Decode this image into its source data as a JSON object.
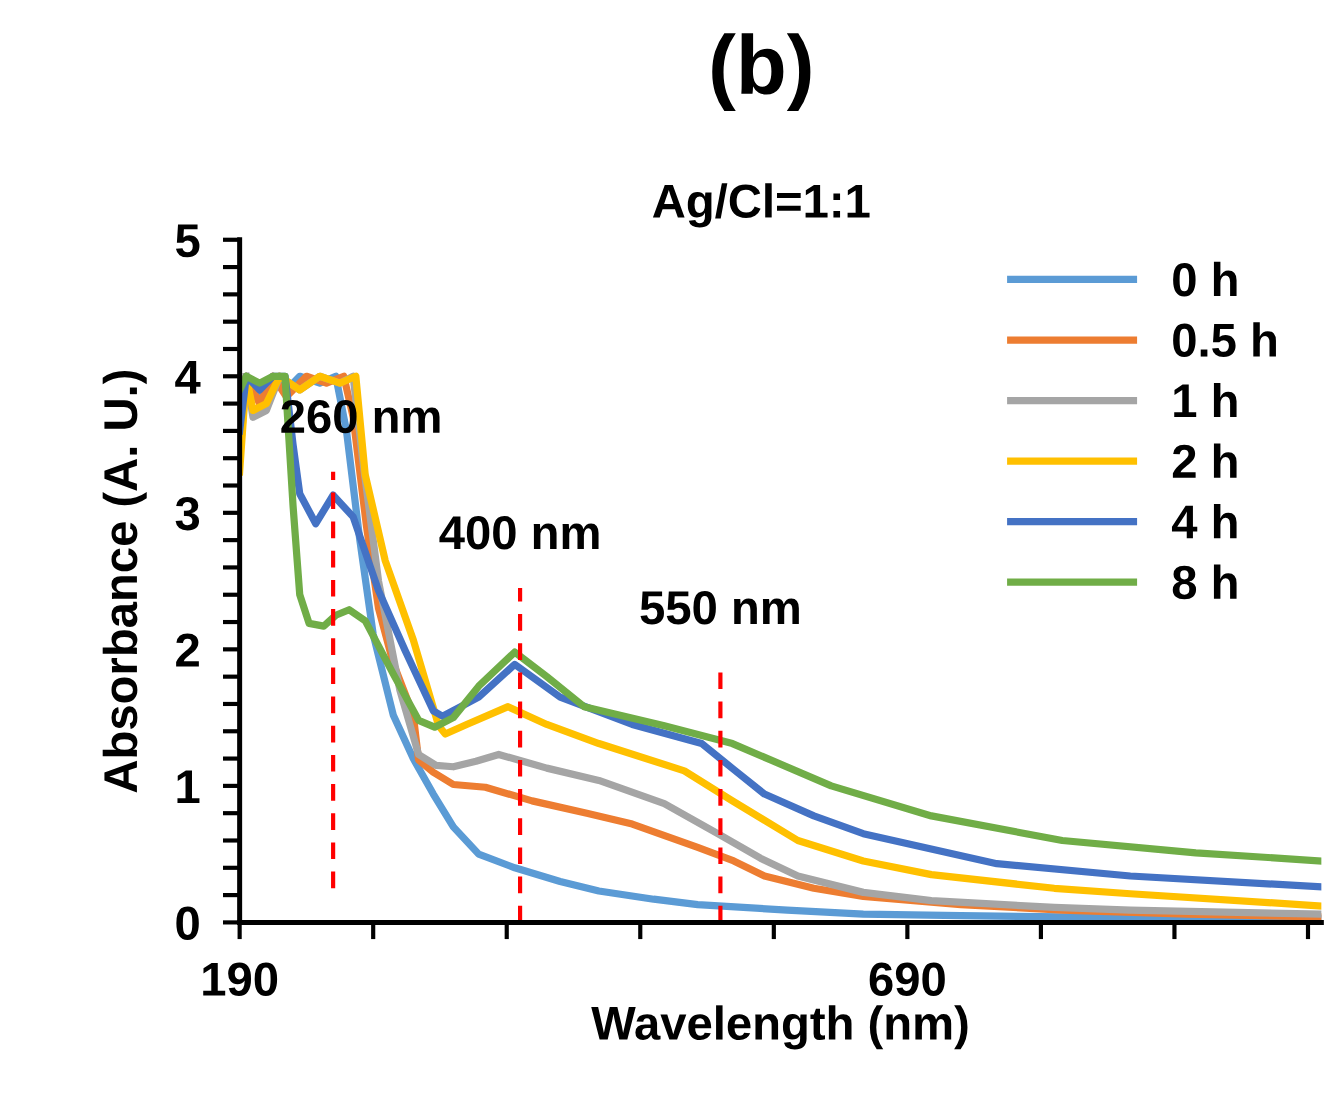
{
  "chart_data": {
    "type": "line",
    "title": "(b)",
    "subtitle": "Ag/Cl=1:1",
    "xlabel": "Wavelength (nm)",
    "ylabel": "Absorbance (A. U.)",
    "xlim": [
      190,
      1000
    ],
    "ylim": [
      0,
      5
    ],
    "xticks": [
      190,
      {
        "value": 290,
        "label": null
      },
      {
        "value": 390,
        "label": null
      },
      {
        "value": 490,
        "label": null
      },
      {
        "value": 590,
        "label": null
      },
      690,
      {
        "value": 790,
        "label": null
      },
      {
        "value": 890,
        "label": null
      },
      {
        "value": 990,
        "label": null
      }
    ],
    "yticks": [
      0,
      {
        "value": 0.2,
        "label": null
      },
      {
        "value": 0.4,
        "label": null
      },
      {
        "value": 0.6,
        "label": null
      },
      {
        "value": 0.8,
        "label": null
      },
      1,
      {
        "value": 1.2,
        "label": null
      },
      {
        "value": 1.4,
        "label": null
      },
      {
        "value": 1.6,
        "label": null
      },
      {
        "value": 1.8,
        "label": null
      },
      2,
      {
        "value": 2.2,
        "label": null
      },
      {
        "value": 2.4,
        "label": null
      },
      {
        "value": 2.6,
        "label": null
      },
      {
        "value": 2.8,
        "label": null
      },
      3,
      {
        "value": 3.2,
        "label": null
      },
      {
        "value": 3.4,
        "label": null
      },
      {
        "value": 3.6,
        "label": null
      },
      {
        "value": 3.8,
        "label": null
      },
      4,
      {
        "value": 4.2,
        "label": null
      },
      {
        "value": 4.4,
        "label": null
      },
      {
        "value": 4.6,
        "label": null
      },
      {
        "value": 4.8,
        "label": null
      },
      5
    ],
    "grid": false,
    "legend": "top right",
    "marker": "none",
    "line_style": "solid",
    "series": [
      {
        "name": "0 h",
        "color": "#5b9bd5",
        "x": [
          190,
          195,
          205,
          215,
          225,
          235,
          250,
          262,
          270,
          280,
          290,
          305,
          320,
          335,
          350,
          369,
          396,
          430,
          459,
          500,
          533,
          600,
          657,
          730,
          806,
          900,
          1000
        ],
        "values": [
          3.5,
          4.0,
          3.85,
          4.0,
          3.9,
          4.0,
          3.95,
          4.0,
          3.6,
          2.8,
          2.11,
          1.52,
          1.2,
          0.94,
          0.7,
          0.5,
          0.4,
          0.3,
          0.23,
          0.17,
          0.13,
          0.09,
          0.06,
          0.05,
          0.04,
          0.03,
          0.03
        ]
      },
      {
        "name": "0.5 h",
        "color": "#ed7d31",
        "x": [
          190,
          195,
          205,
          215,
          225,
          240,
          255,
          268,
          275,
          285,
          294,
          305,
          320,
          324,
          335,
          350,
          374,
          409,
          450,
          484,
          533,
          560,
          583,
          620,
          657,
          730,
          806,
          900,
          1000
        ],
        "values": [
          3.4,
          4.0,
          3.8,
          4.0,
          3.85,
          4.0,
          3.95,
          4.0,
          3.7,
          2.9,
          2.3,
          1.9,
          1.52,
          1.19,
          1.1,
          1.01,
          0.99,
          0.89,
          0.8,
          0.72,
          0.55,
          0.45,
          0.34,
          0.25,
          0.19,
          0.13,
          0.09,
          0.06,
          0.04
        ]
      },
      {
        "name": "1 h",
        "color": "#a5a5a5",
        "x": [
          195,
          200,
          210,
          220,
          235,
          250,
          265,
          275,
          282,
          294,
          310,
          324,
          337,
          350,
          367,
          384,
          420,
          459,
          508,
          548,
          580,
          608,
          657,
          708,
          800,
          857,
          1000
        ],
        "values": [
          4.0,
          3.7,
          3.75,
          4.0,
          3.9,
          4.0,
          3.95,
          4.0,
          3.4,
          2.5,
          1.7,
          1.23,
          1.15,
          1.14,
          1.18,
          1.23,
          1.13,
          1.04,
          0.87,
          0.65,
          0.47,
          0.34,
          0.22,
          0.16,
          0.11,
          0.09,
          0.06
        ]
      },
      {
        "name": "2 h",
        "color": "#ffc000",
        "x": [
          190,
          195,
          200,
          210,
          220,
          235,
          250,
          265,
          277,
          284,
          299,
          320,
          339,
          344,
          360,
          391,
          420,
          459,
          523,
          559,
          608,
          657,
          708,
          800,
          857,
          1000
        ],
        "values": [
          3.3,
          4.0,
          3.75,
          3.8,
          4.0,
          3.9,
          4.0,
          3.95,
          4.0,
          3.28,
          2.65,
          2.07,
          1.44,
          1.38,
          1.45,
          1.58,
          1.45,
          1.31,
          1.11,
          0.89,
          0.6,
          0.45,
          0.35,
          0.25,
          0.21,
          0.12
        ]
      },
      {
        "name": "4 h",
        "color": "#4472c4",
        "x": [
          190,
          195,
          205,
          215,
          224,
          230,
          235,
          247,
          260,
          275,
          294,
          314,
          335,
          342,
          369,
          396,
          430,
          484,
          536,
          560,
          583,
          620,
          657,
          757,
          857,
          1000
        ],
        "values": [
          3.6,
          4.0,
          3.9,
          4.0,
          4.0,
          3.5,
          3.14,
          2.92,
          3.13,
          2.97,
          2.43,
          1.99,
          1.55,
          1.51,
          1.65,
          1.89,
          1.65,
          1.45,
          1.31,
          1.12,
          0.94,
          0.78,
          0.65,
          0.43,
          0.34,
          0.26
        ]
      },
      {
        "name": "8 h",
        "color": "#70ad47",
        "x": [
          190,
          195,
          205,
          215,
          224,
          230,
          235,
          242,
          253,
          262,
          272,
          284,
          305,
          324,
          336,
          350,
          369,
          396,
          420,
          448,
          508,
          559,
          633,
          708,
          806,
          906,
          1000
        ],
        "values": [
          3.9,
          4.0,
          3.95,
          4.0,
          4.0,
          3.05,
          2.4,
          2.19,
          2.17,
          2.25,
          2.29,
          2.21,
          1.82,
          1.48,
          1.43,
          1.5,
          1.73,
          1.98,
          1.8,
          1.58,
          1.44,
          1.31,
          1.0,
          0.78,
          0.6,
          0.51,
          0.45
        ]
      }
    ],
    "ref_lines": [
      {
        "axis": "x",
        "value": 260,
        "label": "260 nm",
        "color": "#ff0000",
        "line_style": "dashed"
      },
      {
        "axis": "x",
        "value": 400,
        "label": "400 nm",
        "color": "#ff0000",
        "line_style": "dashed"
      },
      {
        "axis": "x",
        "value": 550,
        "label": "550 nm",
        "color": "#ff0000",
        "line_style": "dashed"
      }
    ]
  }
}
